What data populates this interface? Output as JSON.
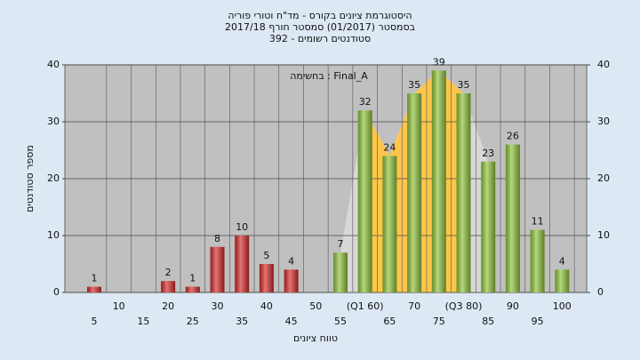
{
  "chart_data": {
    "type": "bar",
    "title": [
      "היסטוגרמת ציונים בקורס - מד\"ח וטורי פוריה",
      "בסמסטר  (01/2017)  סמסטר חורף 2017/18",
      "סטודנטים רשומים - 392"
    ],
    "annotation": "בחשימה : Final_A",
    "x_label": "טווח ציונים",
    "y_label": "מספר סטודנטים",
    "categories": [
      "5",
      "10",
      "15",
      "20",
      "25",
      "30",
      "35",
      "40",
      "45",
      "50",
      "55",
      "(Q1 60)",
      "65",
      "70",
      "75",
      "(Q3 80)",
      "85",
      "90",
      "95",
      "100"
    ],
    "values": [
      1,
      0,
      0,
      2,
      1,
      8,
      10,
      5,
      4,
      0,
      7,
      32,
      24,
      35,
      39,
      35,
      23,
      26,
      11,
      4
    ],
    "colors": [
      "#d42a2a",
      "#d42a2a",
      "#d42a2a",
      "#d42a2a",
      "#d42a2a",
      "#d42a2a",
      "#d42a2a",
      "#d42a2a",
      "#d42a2a",
      "#d42a2a",
      "#8fc23a",
      "#8fc23a",
      "#8fc23a",
      "#8fc23a",
      "#8fc23a",
      "#8fc23a",
      "#8fc23a",
      "#8fc23a",
      "#8fc23a",
      "#8fc23a"
    ],
    "ylim": [
      0,
      40
    ],
    "yticks": [
      0,
      10,
      20,
      30,
      40
    ],
    "y2lim": [
      0,
      40
    ],
    "y2ticks": [
      0,
      10,
      20,
      30,
      40
    ],
    "grid": true
  }
}
